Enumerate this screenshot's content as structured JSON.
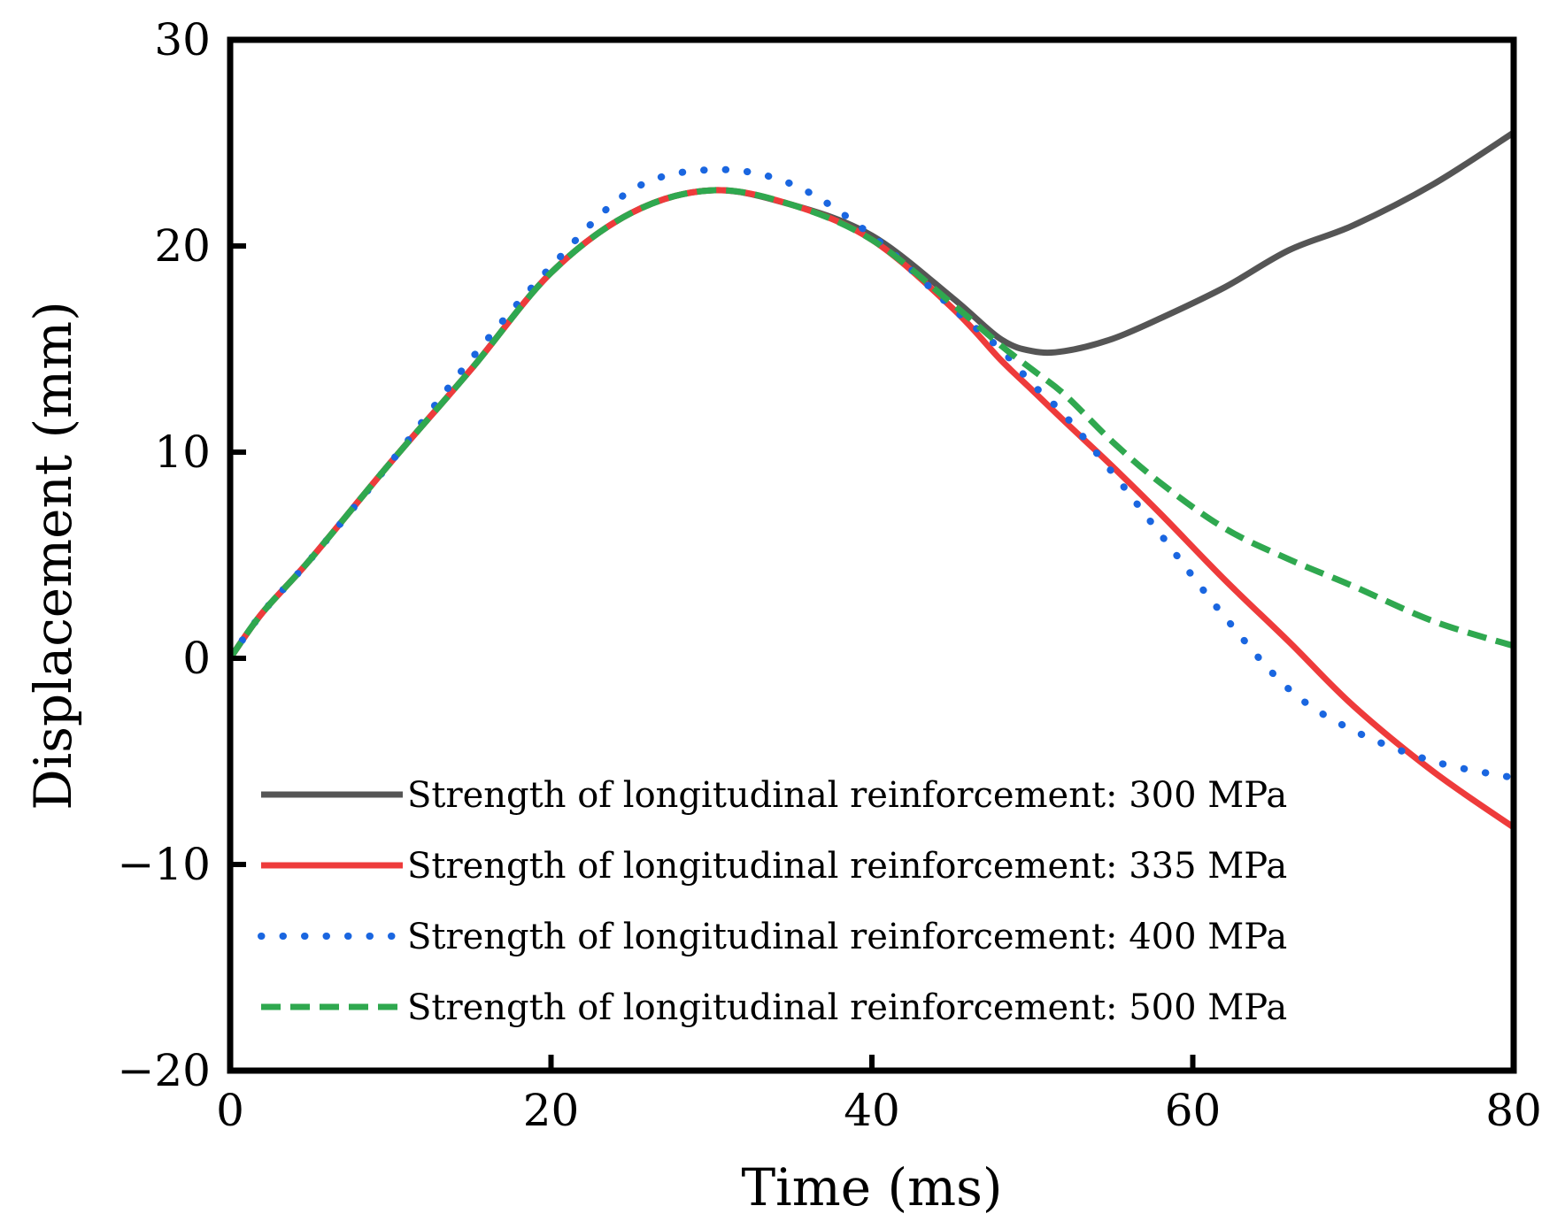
{
  "chart_data": {
    "type": "line",
    "title": "",
    "xlabel": "Time (ms)",
    "ylabel": "Displacement (mm)",
    "xlim": [
      0,
      80
    ],
    "ylim": [
      -20,
      30
    ],
    "xticks": [
      0,
      20,
      40,
      60,
      80
    ],
    "yticks": [
      -20,
      -10,
      0,
      10,
      20,
      30
    ],
    "xtick_labels": [
      "0",
      "20",
      "40",
      "60",
      "80"
    ],
    "ytick_labels": [
      "−20",
      "−10",
      "0",
      "10",
      "20",
      "30"
    ],
    "grid": false,
    "legend_position": "bottom-right",
    "series": [
      {
        "name": "Strength of longitudinal reinforcement: 300 MPa",
        "color": "#555555",
        "style": "solid",
        "x": [
          0,
          2,
          5,
          10,
          15,
          20,
          25,
          30,
          35,
          40,
          45,
          48,
          50,
          52,
          55,
          58,
          62,
          66,
          70,
          75,
          80
        ],
        "y": [
          0,
          2.2,
          4.8,
          9.5,
          14.0,
          18.7,
          21.6,
          22.7,
          22.0,
          20.5,
          17.5,
          15.5,
          14.9,
          14.9,
          15.5,
          16.5,
          18.0,
          19.8,
          21.0,
          23.0,
          25.5
        ]
      },
      {
        "name": "Strength of longitudinal reinforcement: 335 MPa",
        "color": "#ee3b3b",
        "style": "solid",
        "x": [
          0,
          2,
          5,
          10,
          15,
          20,
          25,
          30,
          35,
          40,
          45,
          48,
          50,
          52,
          55,
          58,
          62,
          66,
          70,
          75,
          80
        ],
        "y": [
          0,
          2.2,
          4.8,
          9.5,
          14.0,
          18.7,
          21.6,
          22.7,
          22.0,
          20.3,
          17.0,
          14.5,
          13.0,
          11.5,
          9.3,
          7.0,
          3.8,
          0.8,
          -2.3,
          -5.5,
          -8.2
        ]
      },
      {
        "name": "Strength of longitudinal reinforcement: 400 MPa",
        "color": "#1a66e0",
        "style": "dotted",
        "x": [
          0,
          2,
          5,
          10,
          15,
          20,
          25,
          30,
          35,
          40,
          45,
          48,
          50,
          52,
          55,
          58,
          62,
          66,
          70,
          75,
          80
        ],
        "y": [
          0,
          2.2,
          4.8,
          9.5,
          14.5,
          19.0,
          22.7,
          23.7,
          23.0,
          20.5,
          17.0,
          15.0,
          13.3,
          11.8,
          9.0,
          6.0,
          2.0,
          -1.5,
          -3.5,
          -5.0,
          -5.8
        ]
      },
      {
        "name": "Strength of longitudinal reinforcement: 500 MPa",
        "color": "#2fa84f",
        "style": "dashed",
        "x": [
          0,
          2,
          5,
          10,
          15,
          20,
          25,
          30,
          35,
          40,
          45,
          48,
          50,
          52,
          55,
          58,
          62,
          66,
          70,
          75,
          80
        ],
        "y": [
          0,
          2.2,
          4.8,
          9.5,
          14.0,
          18.7,
          21.6,
          22.7,
          22.0,
          20.3,
          17.2,
          15.2,
          14.0,
          12.8,
          10.5,
          8.5,
          6.3,
          4.8,
          3.5,
          1.8,
          0.6
        ]
      }
    ]
  }
}
